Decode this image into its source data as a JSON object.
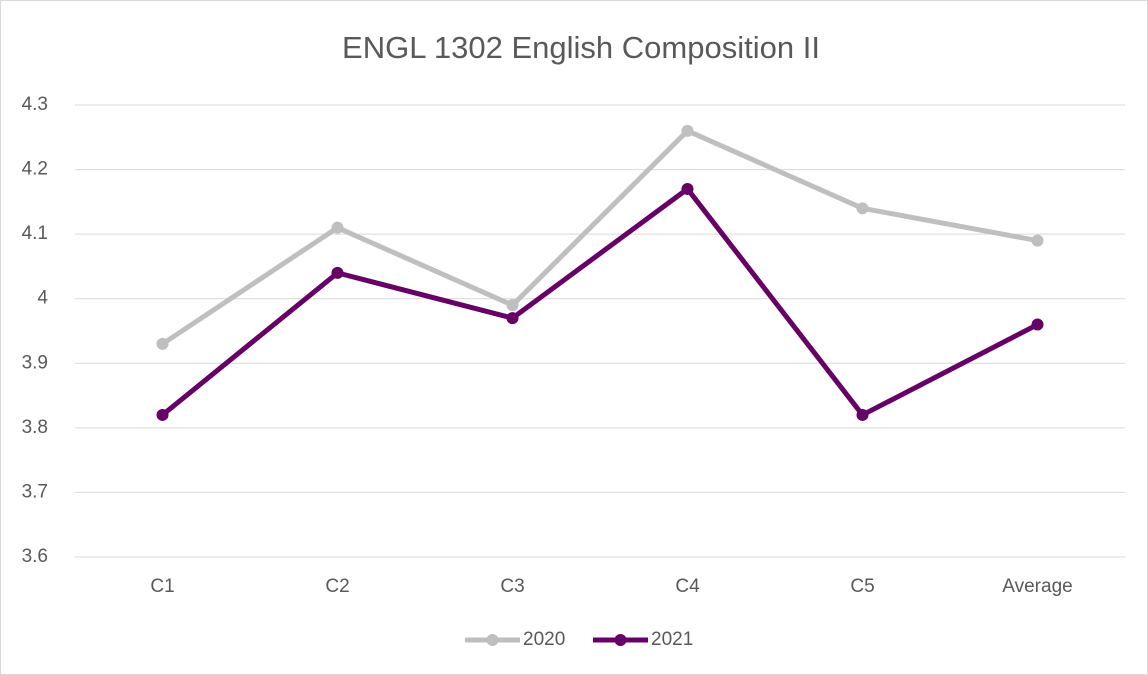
{
  "chart_data": {
    "type": "line",
    "title": "ENGL 1302 English Composition II",
    "categories": [
      "C1",
      "C2",
      "C3",
      "C4",
      "C5",
      "Average"
    ],
    "series": [
      {
        "name": "2020",
        "color": "#bfbfbf",
        "values": [
          3.93,
          4.11,
          3.99,
          4.26,
          4.14,
          4.09
        ]
      },
      {
        "name": "2021",
        "color": "#660066",
        "values": [
          3.82,
          4.04,
          3.97,
          4.17,
          3.82,
          3.96
        ]
      }
    ],
    "ylim": [
      3.6,
      4.3
    ],
    "yticks": [
      3.6,
      3.7,
      3.8,
      3.9,
      4,
      4.1,
      4.2,
      4.3
    ],
    "grid": true,
    "legend": "bottom"
  }
}
